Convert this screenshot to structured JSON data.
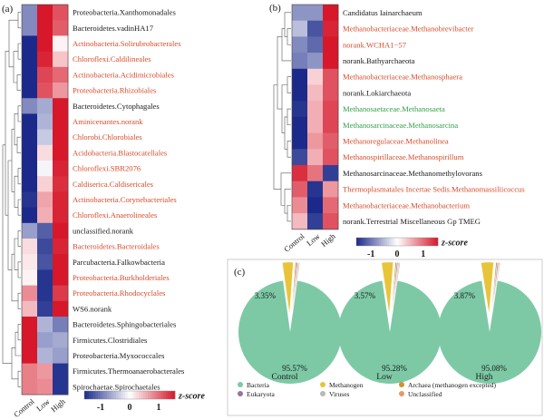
{
  "palette": {
    "low": "#1b2a8a",
    "mid": "#ffffff",
    "high": "#d6182a",
    "black": "#1a1a1a",
    "red_label": "#d84b2a",
    "green_label": "#33a04a",
    "border": "#cccccc"
  },
  "panel_a": {
    "label": "(a)",
    "columns": [
      "Control",
      "Low",
      "High"
    ],
    "rows": [
      {
        "name": "Proteobacteria.Xanthomonadales",
        "color": "black",
        "z": [
          -0.55,
          1.0,
          0.75
        ]
      },
      {
        "name": "Bacteroidetes.vadinHA17",
        "color": "black",
        "z": [
          -0.55,
          1.0,
          0.7
        ]
      },
      {
        "name": "Actinobacteria.Solirubrobacterales",
        "color": "red",
        "z": [
          -1.0,
          1.0,
          0.05
        ]
      },
      {
        "name": "Chloroflexi.Caldilineales",
        "color": "red",
        "z": [
          -1.0,
          0.95,
          0.25
        ]
      },
      {
        "name": "Actinobacteria.Acidimicrobiales",
        "color": "red",
        "z": [
          -1.0,
          0.8,
          0.65
        ]
      },
      {
        "name": "Proteobacteria.Rhizobiales",
        "color": "red",
        "z": [
          -1.0,
          0.75,
          0.45
        ]
      },
      {
        "name": "Bacteroidetes.Cytophagales",
        "color": "black",
        "z": [
          -0.55,
          -0.4,
          1.0
        ]
      },
      {
        "name": "Aminicenantes.norank",
        "color": "red",
        "z": [
          -1.0,
          -0.35,
          1.0
        ]
      },
      {
        "name": "Chlorobi.Chlorobiales",
        "color": "red",
        "z": [
          -1.0,
          -0.25,
          1.0
        ]
      },
      {
        "name": "Acidobacteria.Blastocatellales",
        "color": "red",
        "z": [
          -1.0,
          0.15,
          1.0
        ]
      },
      {
        "name": "Chloroflexi.SBR2076",
        "color": "red",
        "z": [
          -1.0,
          -0.05,
          0.95
        ]
      },
      {
        "name": "Caldiserica.Caldisericales",
        "color": "red",
        "z": [
          -1.0,
          0.2,
          0.9
        ]
      },
      {
        "name": "Actinobacteria.Corynebacteriales",
        "color": "red",
        "z": [
          -0.95,
          0.4,
          0.95
        ]
      },
      {
        "name": "Chloroflexi.Anaerolineales",
        "color": "red",
        "z": [
          -1.0,
          0.35,
          0.95
        ]
      },
      {
        "name": "unclassified.norank",
        "color": "black",
        "z": [
          -0.45,
          -0.75,
          1.0
        ]
      },
      {
        "name": "Bacteroidetes.Bacteroidales",
        "color": "red",
        "z": [
          0.15,
          -0.85,
          0.95
        ]
      },
      {
        "name": "Parcubacteria.Falkowbacteria",
        "color": "black",
        "z": [
          0.1,
          -0.8,
          1.0
        ]
      },
      {
        "name": "Proteobacteria.Burkholderiales",
        "color": "red",
        "z": [
          0.05,
          -0.95,
          1.0
        ]
      },
      {
        "name": "Proteobacteria.Rhodocyclales",
        "color": "red",
        "z": [
          0.5,
          -0.95,
          0.85
        ]
      },
      {
        "name": "WS6.norank",
        "color": "black",
        "z": [
          0.3,
          -0.9,
          1.0
        ]
      },
      {
        "name": "Bacteroidetes.Sphingobacteriales",
        "color": "black",
        "z": [
          1.0,
          -0.35,
          -0.6
        ]
      },
      {
        "name": "Firmicutes.Clostridiales",
        "color": "black",
        "z": [
          1.0,
          -0.45,
          -0.4
        ]
      },
      {
        "name": "Proteobacteria.Myxococcales",
        "color": "black",
        "z": [
          1.0,
          -0.35,
          -0.45
        ]
      },
      {
        "name": "Firmicutes.Thermoanaerobacterales",
        "color": "black",
        "z": [
          0.55,
          0.45,
          -0.95
        ]
      },
      {
        "name": "Spirochaetae.Spirochaetales",
        "color": "black",
        "z": [
          0.55,
          0.5,
          -0.95
        ]
      }
    ],
    "legend": {
      "title": "z-score",
      "ticks": [
        "-1",
        "0",
        "1"
      ]
    }
  },
  "panel_b": {
    "label": "(b)",
    "columns": [
      "Control",
      "Low",
      "High"
    ],
    "rows": [
      {
        "name": "Candidatus Iainarchaeum",
        "color": "black",
        "z": [
          -0.5,
          -0.5,
          1.0
        ]
      },
      {
        "name": "Methanobacteriaceae.Methanobrevibacter",
        "color": "red",
        "z": [
          -0.3,
          -0.8,
          0.95
        ]
      },
      {
        "name": "norank.WCHA1−57",
        "color": "red",
        "z": [
          -0.55,
          -0.7,
          1.0
        ]
      },
      {
        "name": "norank.Bathyarchaeota",
        "color": "black",
        "z": [
          -0.6,
          -0.5,
          1.0
        ]
      },
      {
        "name": "Methanobacteriaceae.Methanosphaera",
        "color": "red",
        "z": [
          -1.0,
          0.2,
          0.75
        ]
      },
      {
        "name": "norank.Lokiarchaeota",
        "color": "black",
        "z": [
          -1.0,
          0.3,
          0.75
        ]
      },
      {
        "name": "Methanosaetaceae.Methanosaeta",
        "color": "green",
        "z": [
          -0.95,
          0.35,
          0.8
        ]
      },
      {
        "name": "Methanosarcinaceae.Methanosarcina",
        "color": "green",
        "z": [
          -1.0,
          0.35,
          0.8
        ]
      },
      {
        "name": "Methanoregulaceae.Methanolinea",
        "color": "red",
        "z": [
          -1.0,
          0.45,
          0.7
        ]
      },
      {
        "name": "Methanospirillaceae.Methanospirillum",
        "color": "red",
        "z": [
          -0.85,
          0.35,
          0.75
        ]
      },
      {
        "name": "Methanosarcinaceae.Methanomethylovorans",
        "color": "black",
        "z": [
          0.9,
          0.6,
          -0.9
        ]
      },
      {
        "name": "Thermoplasmatales Incertae Sedis.Methanomassiliicoccus",
        "color": "red",
        "z": [
          0.7,
          -0.95,
          0.45
        ]
      },
      {
        "name": "Methanobacteriaceae.Methanobacterium",
        "color": "red",
        "z": [
          0.5,
          -1.0,
          0.65
        ]
      },
      {
        "name": "norank.Terrestrial Miscellaneous Gp TMEG",
        "color": "black",
        "z": [
          0.3,
          -0.9,
          0.75
        ]
      }
    ],
    "legend": {
      "title": "z-score",
      "ticks": [
        "-1",
        "0",
        "1"
      ]
    }
  },
  "panel_c": {
    "label": "(c)",
    "pies": [
      {
        "name": "Control",
        "bacteria_label": "95.57%",
        "methanogen_label": "3.35%",
        "slices": [
          {
            "cat": "Bacteria",
            "value": 95.57
          },
          {
            "cat": "Methanogen",
            "value": 3.35
          },
          {
            "cat": "Archaea (methanogen excepted)",
            "value": 0.35
          },
          {
            "cat": "Eukaryota",
            "value": 0.3
          },
          {
            "cat": "Viruses",
            "value": 0.2
          },
          {
            "cat": "Unclassified",
            "value": 0.23
          }
        ]
      },
      {
        "name": "Low",
        "bacteria_label": "95.28%",
        "methanogen_label": "3.57%",
        "slices": [
          {
            "cat": "Bacteria",
            "value": 95.28
          },
          {
            "cat": "Methanogen",
            "value": 3.57
          },
          {
            "cat": "Archaea (methanogen excepted)",
            "value": 0.35
          },
          {
            "cat": "Eukaryota",
            "value": 0.3
          },
          {
            "cat": "Viruses",
            "value": 0.25
          },
          {
            "cat": "Unclassified",
            "value": 0.25
          }
        ]
      },
      {
        "name": "High",
        "bacteria_label": "95.08%",
        "methanogen_label": "3.87%",
        "slices": [
          {
            "cat": "Bacteria",
            "value": 95.08
          },
          {
            "cat": "Methanogen",
            "value": 3.87
          },
          {
            "cat": "Archaea (methanogen excepted)",
            "value": 0.35
          },
          {
            "cat": "Eukaryota",
            "value": 0.3
          },
          {
            "cat": "Viruses",
            "value": 0.2
          },
          {
            "cat": "Unclassified",
            "value": 0.2
          }
        ]
      }
    ],
    "legend": [
      {
        "cat": "Bacteria",
        "color": "#7dc9a6"
      },
      {
        "cat": "Eukaryota",
        "color": "#9a6fa8"
      },
      {
        "cat": "Methanogen",
        "color": "#e8c43a"
      },
      {
        "cat": "Viruses",
        "color": "#b8b8b8"
      },
      {
        "cat": "Archaea (methanogen excepted)",
        "color": "#c9972e"
      },
      {
        "cat": "Unclassified",
        "color": "#e39a6a"
      }
    ]
  },
  "chart_data": [
    {
      "type": "heatmap",
      "panel": "(a)",
      "columns": [
        "Control",
        "Low",
        "High"
      ],
      "legend": "z-score",
      "range": [
        -1,
        1
      ]
    },
    {
      "type": "heatmap",
      "panel": "(b)",
      "columns": [
        "Control",
        "Low",
        "High"
      ],
      "legend": "z-score",
      "range": [
        -1,
        1
      ]
    },
    {
      "type": "pie",
      "panel": "(c)",
      "categories": [
        "Bacteria",
        "Methanogen",
        "Archaea (methanogen excepted)",
        "Eukaryota",
        "Viruses",
        "Unclassified"
      ],
      "series": [
        {
          "name": "Control",
          "values": [
            95.57,
            3.35,
            0.35,
            0.3,
            0.2,
            0.23
          ]
        },
        {
          "name": "Low",
          "values": [
            95.28,
            3.57,
            0.35,
            0.3,
            0.25,
            0.25
          ]
        },
        {
          "name": "High",
          "values": [
            95.08,
            3.87,
            0.35,
            0.3,
            0.2,
            0.2
          ]
        }
      ]
    }
  ]
}
